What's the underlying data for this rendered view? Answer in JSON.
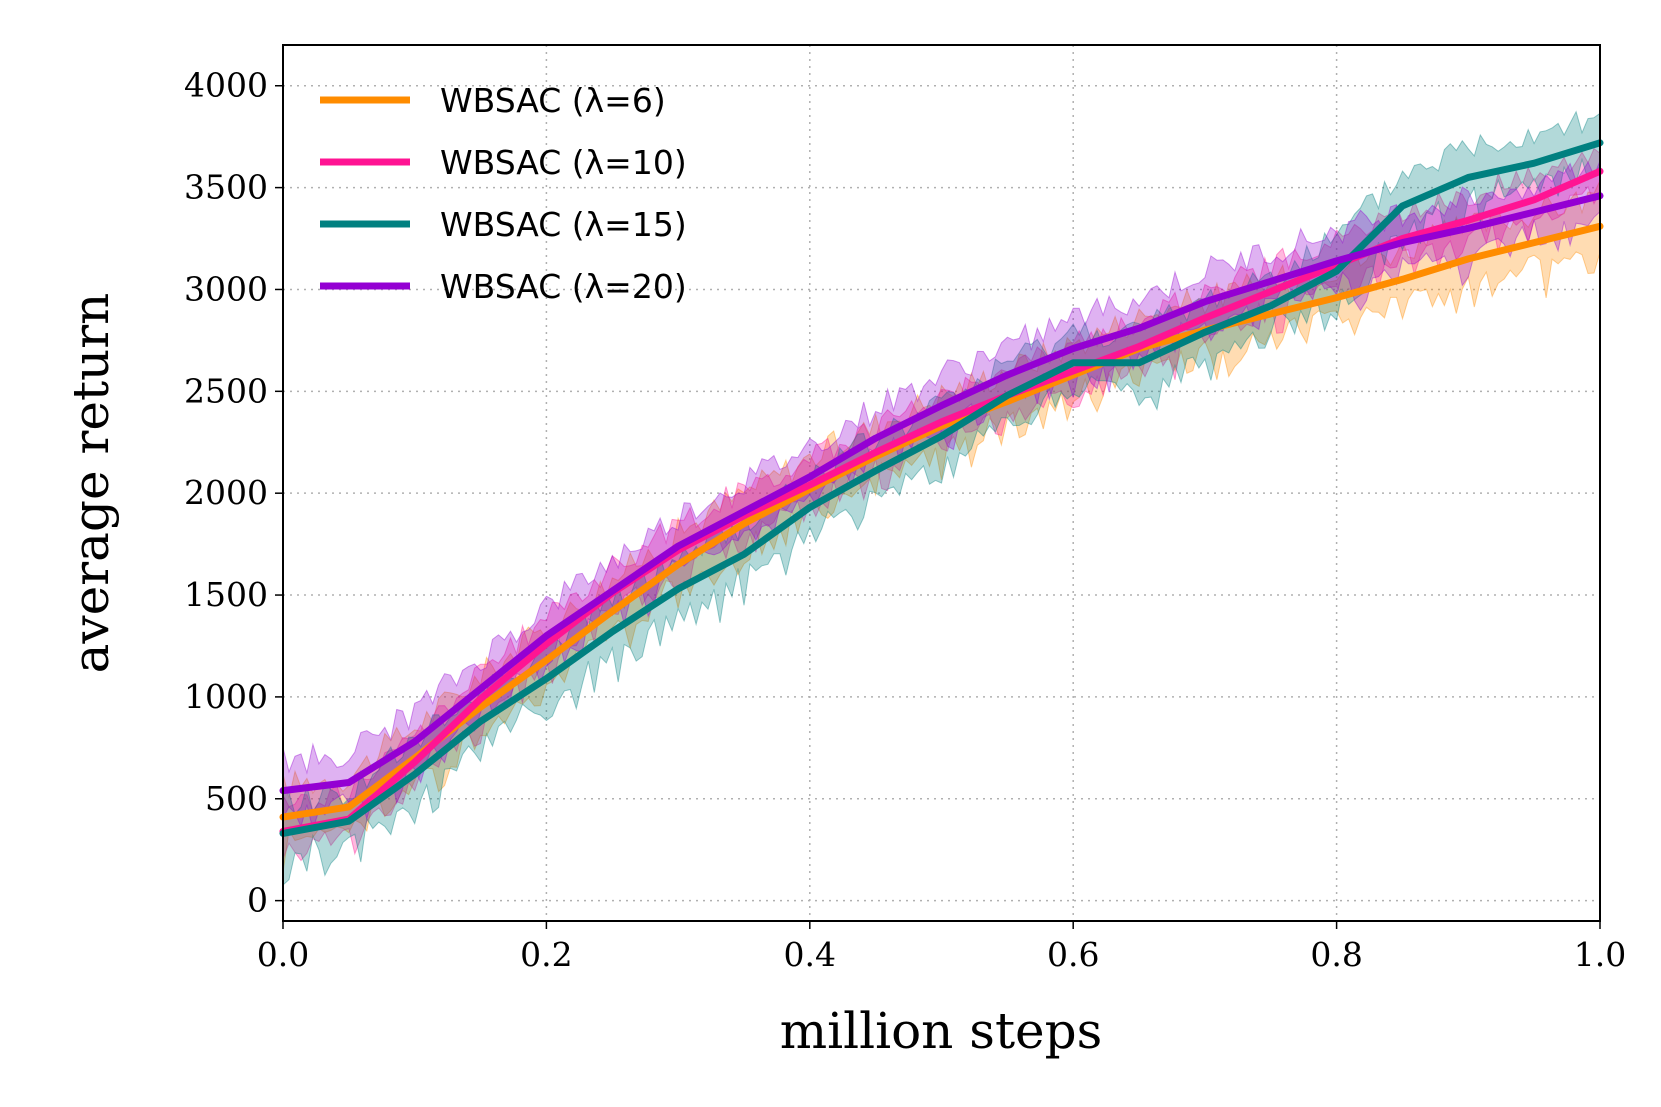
{
  "chart_data": {
    "type": "line",
    "title": "",
    "xlabel": "million steps",
    "ylabel": "average return",
    "xlim": [
      0.0,
      1.0
    ],
    "ylim": [
      -100,
      4200
    ],
    "xticks": [
      0.0,
      0.2,
      0.4,
      0.6,
      0.8,
      1.0
    ],
    "xtick_labels": [
      "0.0",
      "0.2",
      "0.4",
      "0.6",
      "0.8",
      "1.0"
    ],
    "yticks": [
      0,
      500,
      1000,
      1500,
      2000,
      2500,
      3000,
      3500,
      4000
    ],
    "ytick_labels": [
      "0",
      "500",
      "1000",
      "1500",
      "2000",
      "2500",
      "3000",
      "3500",
      "4000"
    ],
    "grid": true,
    "legend_position": "top-left",
    "x": [
      0.0,
      0.05,
      0.1,
      0.15,
      0.2,
      0.25,
      0.3,
      0.35,
      0.4,
      0.45,
      0.5,
      0.55,
      0.6,
      0.65,
      0.7,
      0.75,
      0.8,
      0.85,
      0.9,
      0.95,
      1.0
    ],
    "series": [
      {
        "name": "WBSAC (λ=6)",
        "color": "#ff8c00",
        "values": [
          410,
          460,
          700,
          950,
          1180,
          1420,
          1650,
          1850,
          2020,
          2180,
          2330,
          2450,
          2580,
          2710,
          2800,
          2880,
          2960,
          3050,
          3150,
          3230,
          3310
        ],
        "band_halfwidth": 170
      },
      {
        "name": "WBSAC (λ=10)",
        "color": "#ff1493",
        "values": [
          340,
          400,
          680,
          990,
          1260,
          1510,
          1720,
          1890,
          2040,
          2200,
          2350,
          2480,
          2600,
          2720,
          2860,
          2990,
          3120,
          3250,
          3340,
          3440,
          3580
        ],
        "band_halfwidth": 140
      },
      {
        "name": "WBSAC (λ=15)",
        "color": "#008080",
        "values": [
          330,
          390,
          620,
          880,
          1090,
          1320,
          1530,
          1700,
          1930,
          2110,
          2280,
          2480,
          2640,
          2640,
          2790,
          2920,
          3090,
          3410,
          3550,
          3620,
          3720
        ],
        "band_halfwidth": 170
      },
      {
        "name": "WBSAC (λ=20)",
        "color": "#9400d3",
        "values": [
          540,
          580,
          780,
          1040,
          1300,
          1520,
          1740,
          1910,
          2080,
          2270,
          2430,
          2580,
          2710,
          2810,
          2940,
          3040,
          3140,
          3230,
          3300,
          3380,
          3460
        ],
        "band_halfwidth": 160
      }
    ]
  }
}
